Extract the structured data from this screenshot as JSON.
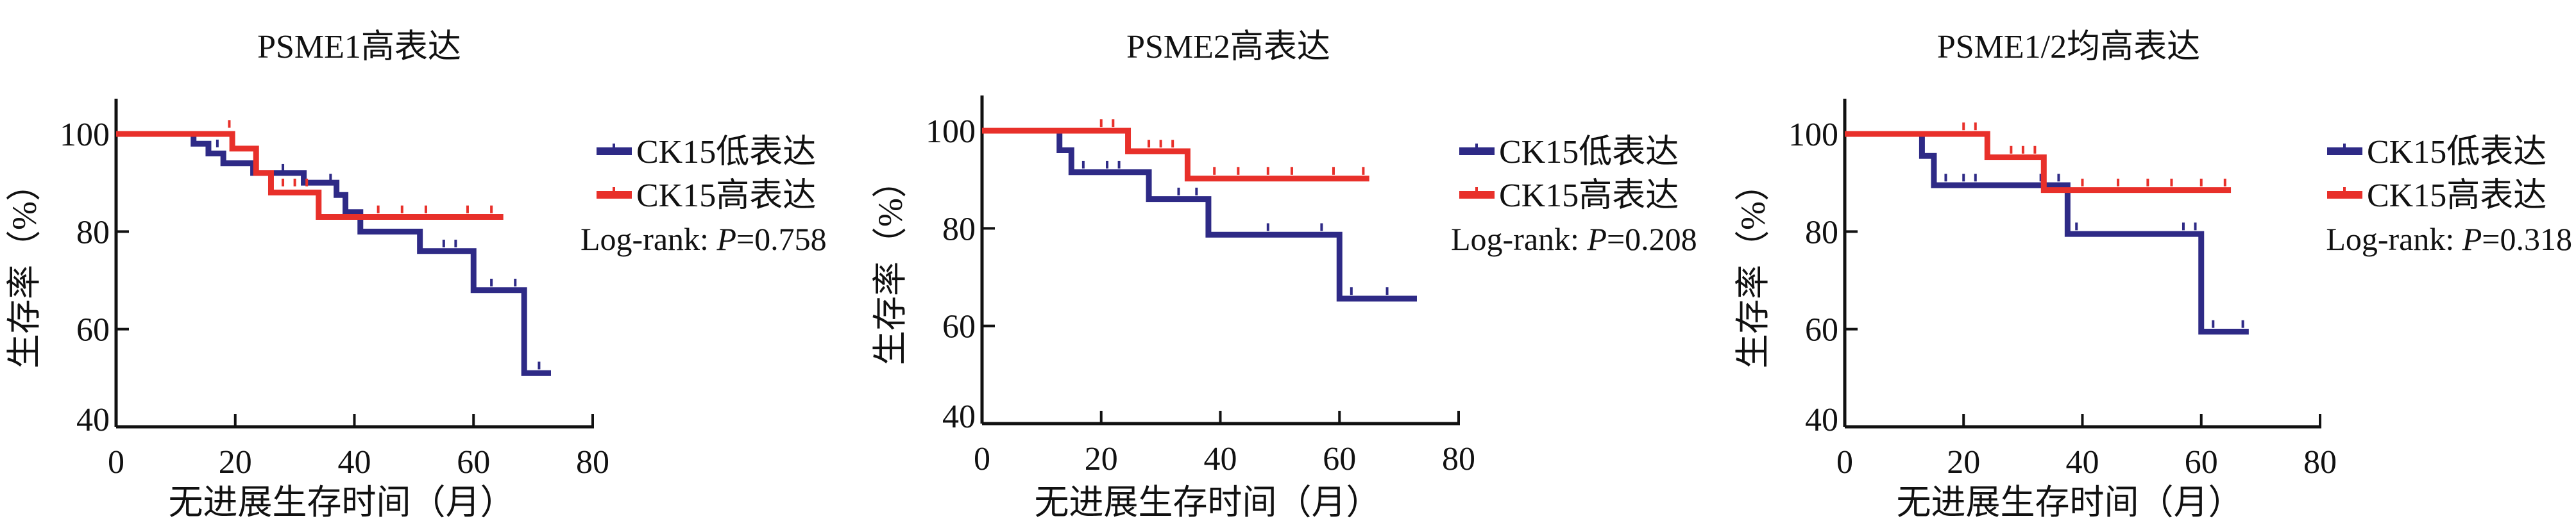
{
  "colors": {
    "low": "#2e2a86",
    "high": "#e8302a",
    "axis": "#111111"
  },
  "chart_data": [
    {
      "type": "line",
      "title": "PSME1高表达",
      "xlabel": "无进展生存时间（月）",
      "ylabel": "生存率（%）",
      "xlim": [
        0,
        80
      ],
      "ylim": [
        40,
        100
      ],
      "xticks": [
        "0",
        "20",
        "40",
        "60",
        "80"
      ],
      "yticks": [
        "40",
        "60",
        "80",
        "100"
      ],
      "legend": [
        "CK15低表达",
        "CK15高表达"
      ],
      "annotation_prefix": "Log-rank: ",
      "annotation_p": "P",
      "annotation_value": "=0.758",
      "series": [
        {
          "name": "CK15低表达",
          "steps": [
            [
              0,
              100
            ],
            [
              13,
              98
            ],
            [
              15.5,
              96
            ],
            [
              18,
              94
            ],
            [
              23,
              92
            ],
            [
              31.5,
              90
            ],
            [
              37,
              87.5
            ],
            [
              38.5,
              84
            ],
            [
              41,
              80
            ],
            [
              51,
              76
            ],
            [
              60,
              68
            ],
            [
              68.5,
              51
            ],
            [
              73,
              51
            ]
          ],
          "censored": [
            [
              17,
              97
            ],
            [
              28,
              92
            ],
            [
              36,
              90
            ],
            [
              55,
              76.5
            ],
            [
              57,
              76.5
            ],
            [
              63,
              68.5
            ],
            [
              67,
              68.5
            ],
            [
              71,
              51.5
            ]
          ]
        },
        {
          "name": "CK15高表达",
          "steps": [
            [
              0,
              100
            ],
            [
              13,
              100
            ],
            [
              19.5,
              97
            ],
            [
              23.5,
              92
            ],
            [
              26,
              88
            ],
            [
              34,
              83
            ],
            [
              65,
              83
            ]
          ],
          "censored": [
            [
              19,
              101
            ],
            [
              28,
              89
            ],
            [
              30,
              89
            ],
            [
              32,
              89
            ],
            [
              44,
              83.5
            ],
            [
              48,
              83.5
            ],
            [
              52,
              83.5
            ],
            [
              59,
              83.5
            ],
            [
              63,
              83.5
            ]
          ]
        }
      ]
    },
    {
      "type": "line",
      "title": "PSME2高表达",
      "xlabel": "无进展生存时间（月）",
      "ylabel": "生存率（%）",
      "xlim": [
        0,
        80
      ],
      "ylim": [
        40,
        100
      ],
      "xticks": [
        "0",
        "20",
        "40",
        "60",
        "80"
      ],
      "yticks": [
        "40",
        "60",
        "80",
        "100"
      ],
      "legend": [
        "CK15低表达",
        "CK15高表达"
      ],
      "annotation_prefix": "Log-rank: ",
      "annotation_p": "P",
      "annotation_value": "=0.208",
      "series": [
        {
          "name": "CK15低表达",
          "steps": [
            [
              0,
              100
            ],
            [
              13,
              96
            ],
            [
              15,
              91.5
            ],
            [
              28,
              86
            ],
            [
              38,
              78.7
            ],
            [
              60,
              65.6
            ],
            [
              73,
              65.6
            ]
          ],
          "censored": [
            [
              17,
              92
            ],
            [
              21,
              92
            ],
            [
              23,
              92
            ],
            [
              33,
              86.5
            ],
            [
              36,
              86.5
            ],
            [
              48,
              79.2
            ],
            [
              57,
              79.2
            ],
            [
              62,
              66.1
            ],
            [
              68,
              66.1
            ]
          ]
        },
        {
          "name": "CK15高表达",
          "steps": [
            [
              0,
              100
            ],
            [
              13,
              100
            ],
            [
              24.5,
              95.8
            ],
            [
              34.5,
              90.2
            ],
            [
              65,
              90.2
            ]
          ],
          "censored": [
            [
              20,
              100.5
            ],
            [
              22,
              100.5
            ],
            [
              28,
              96.3
            ],
            [
              30,
              96.3
            ],
            [
              32,
              96.3
            ],
            [
              39,
              90.7
            ],
            [
              43,
              90.7
            ],
            [
              48,
              90.7
            ],
            [
              52,
              90.7
            ],
            [
              59,
              90.7
            ],
            [
              64,
              90.7
            ]
          ]
        }
      ]
    },
    {
      "type": "line",
      "title": "PSME1/2均高表达",
      "xlabel": "无进展生存时间（月）",
      "ylabel": "生存率（%）",
      "xlim": [
        0,
        80
      ],
      "ylim": [
        40,
        100
      ],
      "xticks": [
        "0",
        "20",
        "40",
        "60",
        "80"
      ],
      "yticks": [
        "40",
        "60",
        "80",
        "100"
      ],
      "legend": [
        "CK15低表达",
        "CK15高表达"
      ],
      "annotation_prefix": "Log-rank: ",
      "annotation_p": "P",
      "annotation_value": "=0.318",
      "series": [
        {
          "name": "CK15低表达",
          "steps": [
            [
              0,
              100
            ],
            [
              13,
              95.5
            ],
            [
              15,
              89.5
            ],
            [
              37.5,
              79.5
            ],
            [
              60,
              59.5
            ],
            [
              68,
              59.5
            ]
          ],
          "censored": [
            [
              17,
              90
            ],
            [
              20,
              90
            ],
            [
              22,
              90
            ],
            [
              33,
              90
            ],
            [
              36,
              90
            ],
            [
              39,
              80
            ],
            [
              57,
              80
            ],
            [
              59,
              80
            ],
            [
              62,
              60
            ],
            [
              67,
              60
            ]
          ]
        },
        {
          "name": "CK15高表达",
          "steps": [
            [
              0,
              100
            ],
            [
              13,
              100
            ],
            [
              24,
              95.2
            ],
            [
              33.5,
              88.5
            ],
            [
              65,
              88.5
            ]
          ],
          "censored": [
            [
              20,
              100.5
            ],
            [
              22,
              100.5
            ],
            [
              28,
              95.7
            ],
            [
              30,
              95.7
            ],
            [
              32,
              95.7
            ],
            [
              40,
              89
            ],
            [
              46,
              89
            ],
            [
              51,
              89
            ],
            [
              55,
              89
            ],
            [
              60,
              89
            ],
            [
              64,
              89
            ]
          ]
        }
      ]
    }
  ]
}
